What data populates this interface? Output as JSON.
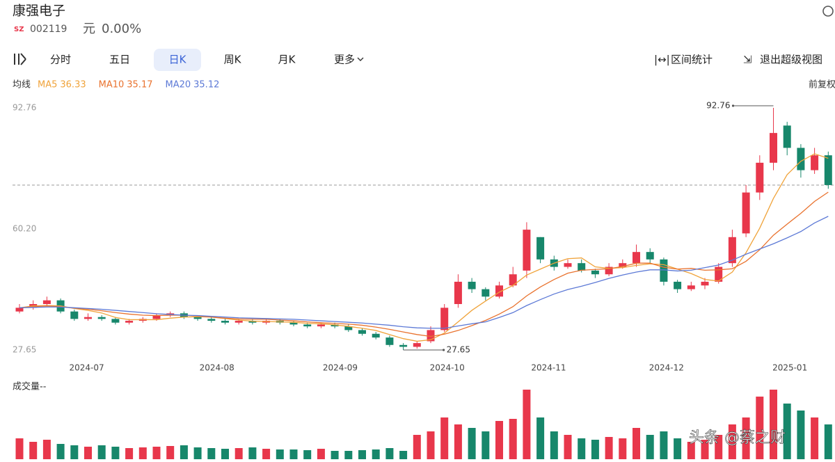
{
  "header": {
    "name": "康强电子",
    "market": "SZ",
    "code": "002119",
    "unit": "元",
    "change": "0.00%"
  },
  "tabs": [
    "分时",
    "五日",
    "日K",
    "周K",
    "月K",
    "更多"
  ],
  "tools": [
    "区间统计",
    "退出超级视图"
  ],
  "ma_label": "均线",
  "adjust": "前复权",
  "volume_label": "成交量--",
  "watermark": "头条 @蔡之财",
  "chart_data": {
    "type": "candlestick",
    "selected_tab": 2,
    "ylim": [
      27.65,
      92.76
    ],
    "yticks": [
      27.65,
      {
        "value": 60.2,
        "label": "60.20"
      },
      92.76
    ],
    "xticks": [
      {
        "value": 4.9,
        "label": "2024-07"
      },
      {
        "value": 14.4,
        "label": "2024-08"
      },
      {
        "value": 23.4,
        "label": "2024-09"
      },
      {
        "value": 31.2,
        "label": "2024-10"
      },
      {
        "value": 38.6,
        "label": "2024-11"
      },
      {
        "value": 47.2,
        "label": "2024-12"
      },
      {
        "value": 56.2,
        "label": "2025-01"
      }
    ],
    "up_color": "#e8374b",
    "down_color": "#17876b",
    "open": [
      38,
      39,
      40,
      41,
      38,
      36,
      36.5,
      36,
      35,
      35.5,
      36,
      37,
      37.5,
      36.5,
      36,
      35.5,
      35,
      35.5,
      35,
      35.5,
      35,
      34.5,
      34,
      34.5,
      34,
      33,
      32,
      31,
      29,
      28.5,
      30,
      33,
      40,
      46,
      44,
      42,
      45,
      49,
      58,
      52,
      50,
      51,
      49,
      48,
      50,
      51,
      54,
      52,
      46,
      44,
      45,
      46,
      51,
      59,
      70,
      78,
      88,
      82,
      76,
      80
    ],
    "high": [
      40,
      41,
      42,
      41.5,
      38.5,
      37.5,
      37,
      36.5,
      36,
      36.5,
      37.5,
      38,
      38,
      37,
      36.5,
      36,
      36,
      36,
      36,
      36,
      35.5,
      35,
      35,
      35,
      34.5,
      33.5,
      32.5,
      31.5,
      29.5,
      30,
      34,
      40,
      48,
      47,
      44.5,
      46,
      50,
      62,
      58,
      53,
      52,
      52,
      49.5,
      51,
      52,
      56,
      55,
      52.5,
      46.5,
      46,
      47,
      51,
      60,
      72,
      80,
      92.76,
      89,
      83,
      82,
      81
    ],
    "low": [
      37.5,
      38.5,
      39.5,
      37.5,
      35.5,
      35.5,
      35.5,
      34.5,
      34.5,
      35,
      35.5,
      36.5,
      36,
      35.5,
      35,
      34.5,
      34.5,
      34.5,
      34.5,
      34.5,
      34,
      33.5,
      33.5,
      33.5,
      32.5,
      31.5,
      30.5,
      28.5,
      27.65,
      28,
      29.5,
      32.5,
      39,
      43,
      41,
      41.5,
      44.5,
      47,
      51,
      49,
      49.5,
      48.5,
      47,
      47.5,
      49.5,
      50,
      51,
      45,
      43,
      43.5,
      44,
      45.5,
      50,
      58,
      68,
      76,
      80,
      74,
      75,
      71
    ],
    "close": [
      39,
      40,
      41,
      38,
      36,
      36.5,
      36,
      35,
      35.5,
      36,
      37,
      37.5,
      36.5,
      36,
      35.5,
      35,
      35.5,
      35,
      35.5,
      35,
      34.5,
      34,
      34.5,
      34,
      33,
      32,
      31,
      29,
      28.5,
      29.5,
      33,
      39,
      46,
      44,
      42,
      45,
      48,
      60,
      52,
      50,
      51,
      49,
      48,
      50,
      51,
      54,
      52,
      46,
      44,
      45,
      46,
      50,
      58,
      70,
      78,
      86,
      82,
      76,
      80,
      72
    ],
    "volume": [
      30,
      25,
      28,
      22,
      20,
      18,
      20,
      18,
      16,
      17,
      18,
      19,
      20,
      17,
      16,
      15,
      16,
      17,
      15,
      14,
      14,
      13,
      15,
      12,
      12,
      13,
      14,
      16,
      12,
      35,
      40,
      60,
      50,
      45,
      40,
      55,
      58,
      100,
      60,
      40,
      35,
      30,
      28,
      32,
      30,
      45,
      35,
      40,
      30,
      25,
      28,
      35,
      50,
      60,
      90,
      100,
      80,
      70,
      60,
      50
    ],
    "volume_max": 100,
    "series": [
      {
        "name": "MA5",
        "legend_value": 36.33,
        "color": "#f0a33a",
        "values": [
          39,
          39.5,
          39.6,
          39.5,
          38.8,
          38.3,
          37.6,
          36.4,
          35.8,
          35.8,
          35.8,
          36.2,
          36.5,
          36.6,
          36.5,
          36.1,
          35.7,
          35.4,
          35.3,
          35.2,
          35.1,
          34.8,
          34.7,
          34.4,
          34,
          33.5,
          32.9,
          31.8,
          30.7,
          30,
          30.4,
          32.2,
          35.2,
          38.3,
          40.8,
          43.2,
          45,
          47.8,
          49.4,
          51,
          52.2,
          52.4,
          50,
          49.6,
          49.8,
          50.4,
          50.8,
          50.6,
          49.4,
          48.2,
          46.6,
          46.2,
          48.6,
          53.8,
          60.4,
          68.4,
          74.8,
          78.4,
          80.4,
          79.2
        ]
      },
      {
        "name": "MA10",
        "legend_value": 35.17,
        "color": "#e9722e",
        "values": [
          39,
          39.3,
          39.5,
          39.3,
          38.9,
          38.6,
          38.2,
          37.7,
          37.3,
          37,
          36.9,
          37,
          37,
          36.8,
          36.5,
          36.2,
          36,
          35.9,
          35.9,
          35.7,
          35.5,
          35.2,
          35,
          34.8,
          34.6,
          34.3,
          33.8,
          33.2,
          32.5,
          31.8,
          31.3,
          31.9,
          32.9,
          34.2,
          35.6,
          37.3,
          39.3,
          42.2,
          44.6,
          46.6,
          48.3,
          49.1,
          49.3,
          49.5,
          50.1,
          51,
          51,
          49.9,
          49.4,
          49.6,
          49.1,
          49.2,
          49.5,
          51.5,
          54.6,
          58.5,
          61.5,
          64.4,
          67.6,
          70.1
        ]
      },
      {
        "name": "MA20",
        "legend_value": 35.12,
        "color": "#5c79d6",
        "values": [
          39,
          39.1,
          39.2,
          39.2,
          39,
          38.8,
          38.6,
          38.3,
          38,
          37.7,
          37.4,
          37.2,
          37,
          36.9,
          36.7,
          36.5,
          36.3,
          36.2,
          36.1,
          36,
          35.9,
          35.7,
          35.5,
          35.3,
          35.1,
          34.9,
          34.6,
          34.3,
          33.9,
          33.6,
          33.5,
          33.5,
          34.1,
          34.7,
          35.2,
          36.4,
          37.7,
          39.6,
          41.2,
          42.7,
          43.9,
          44.8,
          45.8,
          46.9,
          47.8,
          48.6,
          49.2,
          49.2,
          48.9,
          49.1,
          49.8,
          50.5,
          51.8,
          53.4,
          54.8,
          56.2,
          57.8,
          59.5,
          61.8,
          63.6
        ]
      }
    ],
    "annotations": [
      {
        "value": 92.76,
        "index": 55
      },
      {
        "value": 27.65,
        "index": 28
      }
    ]
  }
}
